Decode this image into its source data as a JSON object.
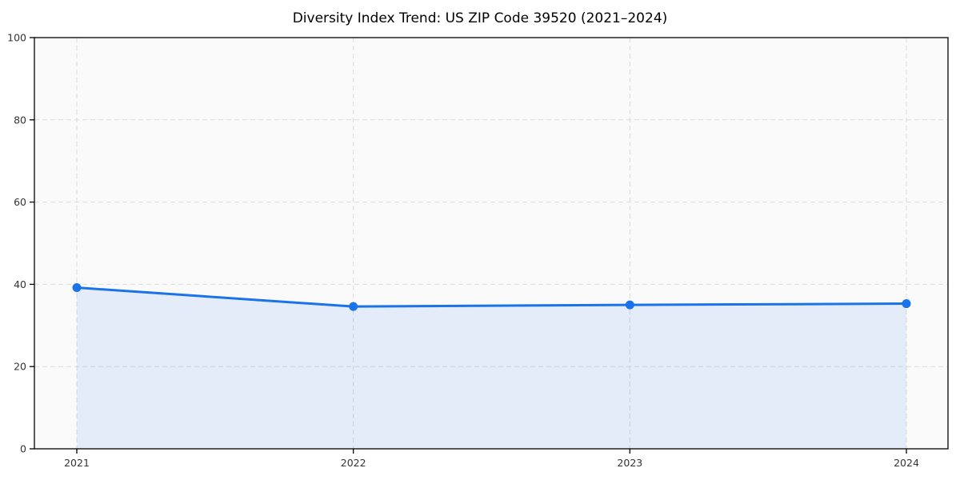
{
  "chart_data": {
    "type": "area",
    "title": "Diversity Index Trend: US ZIP Code 39520 (2021–2024)",
    "xlabel": "",
    "ylabel": "",
    "x": [
      2021,
      2022,
      2023,
      2024
    ],
    "x_tick_labels": [
      "2021",
      "2022",
      "2023",
      "2024"
    ],
    "series": [
      {
        "name": "Diversity Index",
        "values": [
          39.2,
          34.6,
          35.0,
          35.3
        ]
      }
    ],
    "ylim": [
      0,
      100
    ],
    "y_ticks": [
      0,
      20,
      40,
      60,
      80,
      100
    ],
    "grid": true,
    "grid_style": "dashed",
    "legend": "none",
    "colors": {
      "line": "#1a73e8",
      "marker": "#1a73e8",
      "fill": "rgba(26,115,232,0.10)",
      "grid": "#dcdcdc",
      "plot_background": "#fafafa",
      "axis": "#000000",
      "tick_label": "#333333",
      "title": "#000000"
    }
  }
}
